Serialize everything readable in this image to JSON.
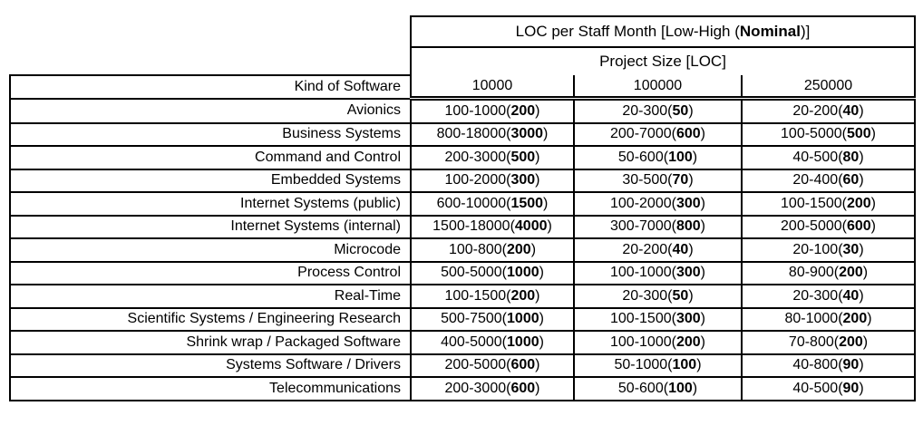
{
  "colors": {
    "background": "#ffffff",
    "text": "#000000",
    "border": "#000000"
  },
  "table": {
    "title": {
      "pre": "LOC per Staff Month [Low-High (",
      "bold": "Nominal",
      "post": ")]"
    },
    "subtitle": "Project Size [LOC]",
    "row_header": "Kind of Software",
    "columns": [
      "10000",
      "100000",
      "250000"
    ],
    "rows": [
      {
        "label": "Avionics",
        "cells": [
          {
            "r": "100-1000",
            "n": "200"
          },
          {
            "r": "20-300",
            "n": "50"
          },
          {
            "r": "20-200",
            "n": "40"
          }
        ]
      },
      {
        "label": "Business Systems",
        "cells": [
          {
            "r": "800-18000",
            "n": "3000"
          },
          {
            "r": "200-7000",
            "n": "600"
          },
          {
            "r": "100-5000",
            "n": "500"
          }
        ]
      },
      {
        "label": "Command and Control",
        "cells": [
          {
            "r": "200-3000",
            "n": "500"
          },
          {
            "r": "50-600",
            "n": "100"
          },
          {
            "r": "40-500",
            "n": "80"
          }
        ]
      },
      {
        "label": "Embedded Systems",
        "cells": [
          {
            "r": "100-2000",
            "n": "300"
          },
          {
            "r": "30-500",
            "n": "70"
          },
          {
            "r": "20-400",
            "n": "60"
          }
        ]
      },
      {
        "label": "Internet Systems (public)",
        "cells": [
          {
            "r": "600-10000",
            "n": "1500"
          },
          {
            "r": "100-2000",
            "n": "300"
          },
          {
            "r": "100-1500",
            "n": "200"
          }
        ]
      },
      {
        "label": "Internet Systems (internal)",
        "cells": [
          {
            "r": "1500-18000",
            "n": "4000"
          },
          {
            "r": "300-7000",
            "n": "800"
          },
          {
            "r": "200-5000",
            "n": "600"
          }
        ]
      },
      {
        "label": "Microcode",
        "cells": [
          {
            "r": "100-800",
            "n": "200"
          },
          {
            "r": "20-200",
            "n": "40"
          },
          {
            "r": "20-100",
            "n": "30"
          }
        ]
      },
      {
        "label": "Process Control",
        "cells": [
          {
            "r": "500-5000",
            "n": "1000"
          },
          {
            "r": "100-1000",
            "n": "300"
          },
          {
            "r": "80-900",
            "n": "200"
          }
        ]
      },
      {
        "label": "Real-Time",
        "cells": [
          {
            "r": "100-1500",
            "n": "200"
          },
          {
            "r": "20-300",
            "n": "50"
          },
          {
            "r": "20-300",
            "n": "40"
          }
        ]
      },
      {
        "label": "Scientific Systems / Engineering Research",
        "cells": [
          {
            "r": "500-7500",
            "n": "1000"
          },
          {
            "r": "100-1500",
            "n": "300"
          },
          {
            "r": "80-1000",
            "n": "200"
          }
        ]
      },
      {
        "label": "Shrink wrap / Packaged Software",
        "cells": [
          {
            "r": "400-5000",
            "n": "1000"
          },
          {
            "r": "100-1000",
            "n": "200"
          },
          {
            "r": "70-800",
            "n": "200"
          }
        ]
      },
      {
        "label": "Systems Software / Drivers",
        "cells": [
          {
            "r": "200-5000",
            "n": "600"
          },
          {
            "r": "50-1000",
            "n": "100"
          },
          {
            "r": "40-800",
            "n": "90"
          }
        ]
      },
      {
        "label": "Telecommunications",
        "cells": [
          {
            "r": "200-3000",
            "n": "600"
          },
          {
            "r": "50-600",
            "n": "100"
          },
          {
            "r": "40-500",
            "n": "90"
          }
        ]
      }
    ]
  }
}
